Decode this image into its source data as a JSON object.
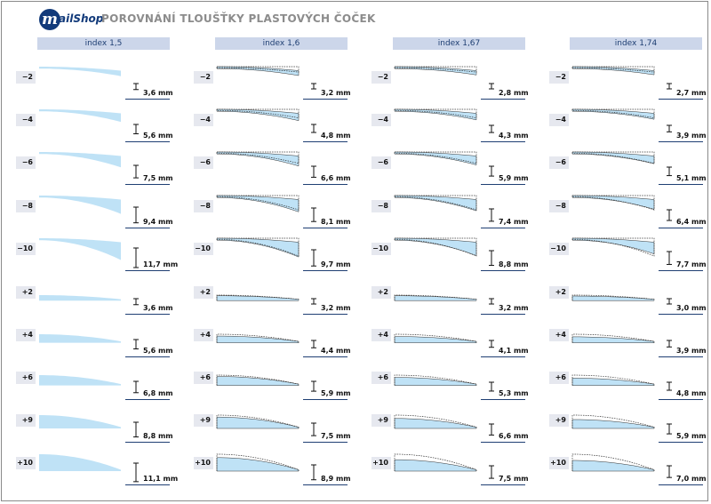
{
  "title": "POROVNÁNÍ TLOUŠŤKY PLASTOVÝCH ČOČEK",
  "logo": {
    "initial": "m",
    "rest": "ailShop"
  },
  "chart_data": {
    "type": "table",
    "title": "POROVNÁNÍ TLOUŠŤKY PLASTOVÝCH ČOČEK",
    "columns": [
      "index 1,5",
      "index 1,6",
      "index 1,67",
      "index 1,74"
    ],
    "rows": [
      "−2",
      "−4",
      "−6",
      "−8",
      "−10",
      "+2",
      "+4",
      "+6",
      "+9",
      "+10"
    ],
    "powers": [
      -2,
      -4,
      -6,
      -8,
      -10,
      2,
      4,
      6,
      9,
      10
    ],
    "thickness_labels": [
      [
        "3,6 mm",
        "3,2 mm",
        "2,8 mm",
        "2,7 mm"
      ],
      [
        "5,6 mm",
        "4,8 mm",
        "4,3 mm",
        "3,9 mm"
      ],
      [
        "7,5 mm",
        "6,6 mm",
        "5,9 mm",
        "5,1 mm"
      ],
      [
        "9,4 mm",
        "8,1 mm",
        "7,4 mm",
        "6,4 mm"
      ],
      [
        "11,7 mm",
        "9,7 mm",
        "8,8 mm",
        "7,7 mm"
      ],
      [
        "3,6 mm",
        "3,2 mm",
        "3,2 mm",
        "3,0 mm"
      ],
      [
        "5,6 mm",
        "4,4 mm",
        "4,1 mm",
        "3,9 mm"
      ],
      [
        "6,8 mm",
        "5,9 mm",
        "5,3 mm",
        "4,8 mm"
      ],
      [
        "8,8 mm",
        "7,5 mm",
        "6,6 mm",
        "5,9 mm"
      ],
      [
        "11,1 mm",
        "8,9 mm",
        "7,5 mm",
        "7,0 mm"
      ]
    ],
    "thickness_mm": [
      [
        3.6,
        3.2,
        2.8,
        2.7
      ],
      [
        5.6,
        4.8,
        4.3,
        3.9
      ],
      [
        7.5,
        6.6,
        5.9,
        5.1
      ],
      [
        9.4,
        8.1,
        7.4,
        6.4
      ],
      [
        11.7,
        9.7,
        8.8,
        7.7
      ],
      [
        3.6,
        3.2,
        3.2,
        3.0
      ],
      [
        5.6,
        4.4,
        4.1,
        3.9
      ],
      [
        6.8,
        5.9,
        5.3,
        4.8
      ],
      [
        8.8,
        7.5,
        6.6,
        5.9
      ],
      [
        11.1,
        8.9,
        7.5,
        7.0
      ]
    ],
    "reference_outline": "index 1,5",
    "colors": {
      "lens_fill": "#bfe2f6",
      "outline": "#333333",
      "header_bg": "#ccd6ea",
      "header_text": "#1f3f73",
      "label_bg": "#e6e8ef"
    }
  }
}
